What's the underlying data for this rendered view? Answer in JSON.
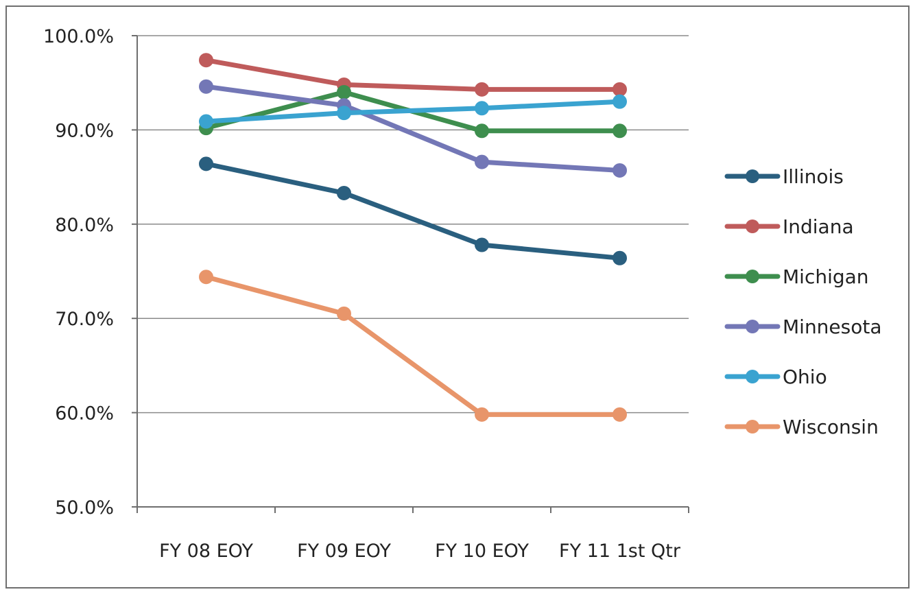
{
  "chart_data": {
    "type": "line",
    "categories": [
      "FY 08 EOY",
      "FY 09 EOY",
      "FY 10 EOY",
      "FY 11 1st Qtr"
    ],
    "ylim": [
      0.5,
      1.0
    ],
    "y_ticks": [
      0.5,
      0.6,
      0.7,
      0.8,
      0.9,
      1.0
    ],
    "y_tick_labels": [
      "50.0%",
      "60.0%",
      "70.0%",
      "80.0%",
      "90.0%",
      "100.0%"
    ],
    "grid": true,
    "legend_position": "right",
    "series": [
      {
        "name": "Illinois",
        "color": "#2a5f7f",
        "values": [
          0.864,
          0.833,
          0.778,
          0.764
        ]
      },
      {
        "name": "Indiana",
        "color": "#bf5b5b",
        "values": [
          0.974,
          0.948,
          0.943,
          0.943
        ]
      },
      {
        "name": "Michigan",
        "color": "#3e8e4e",
        "values": [
          0.902,
          0.94,
          0.899,
          0.899
        ]
      },
      {
        "name": "Minnesota",
        "color": "#7377b6",
        "values": [
          0.946,
          0.926,
          0.866,
          0.857
        ]
      },
      {
        "name": "Ohio",
        "color": "#3aa3d0",
        "values": [
          0.909,
          0.918,
          0.923,
          0.93
        ]
      },
      {
        "name": "Wisconsin",
        "color": "#e8956a",
        "values": [
          0.744,
          0.705,
          0.598,
          0.598
        ]
      }
    ]
  }
}
